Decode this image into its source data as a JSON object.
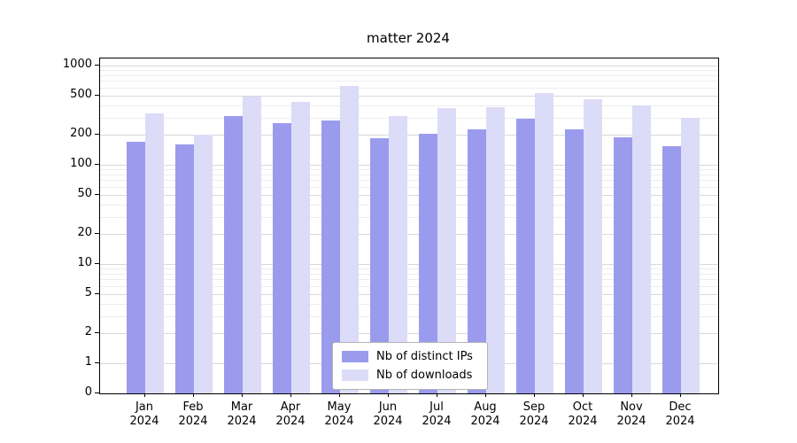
{
  "chart_data": {
    "type": "bar",
    "title": "matter 2024",
    "scale": "symlog",
    "x": {
      "months": [
        "Jan",
        "Feb",
        "Mar",
        "Apr",
        "May",
        "Jun",
        "Jul",
        "Aug",
        "Sep",
        "Oct",
        "Nov",
        "Dec"
      ],
      "year": "2024"
    },
    "series": [
      {
        "name": "Nb of distinct IPs",
        "color": "#9b9bee",
        "values": [
          170,
          160,
          310,
          265,
          280,
          185,
          205,
          230,
          290,
          230,
          190,
          155
        ]
      },
      {
        "name": "Nb of downloads",
        "color": "#dcdcf8",
        "values": [
          330,
          200,
          490,
          430,
          620,
          310,
          370,
          380,
          530,
          460,
          400,
          300
        ]
      }
    ],
    "y_axis": {
      "ticks": [
        0,
        1,
        2,
        5,
        10,
        20,
        50,
        100,
        200,
        500,
        1000
      ],
      "minor_gridlines": [
        3,
        4,
        6,
        7,
        8,
        9,
        30,
        40,
        60,
        70,
        80,
        90,
        300,
        400,
        600,
        700,
        800,
        900
      ],
      "range": [
        0,
        1100
      ]
    },
    "legend": {
      "position": "lower center"
    },
    "grid": true
  },
  "colors": {
    "grid_major": "#d9d9d9",
    "grid_minor": "#ededed",
    "spine": "#000000",
    "legend_border": "#b3b3b3",
    "background": "#ffffff"
  }
}
